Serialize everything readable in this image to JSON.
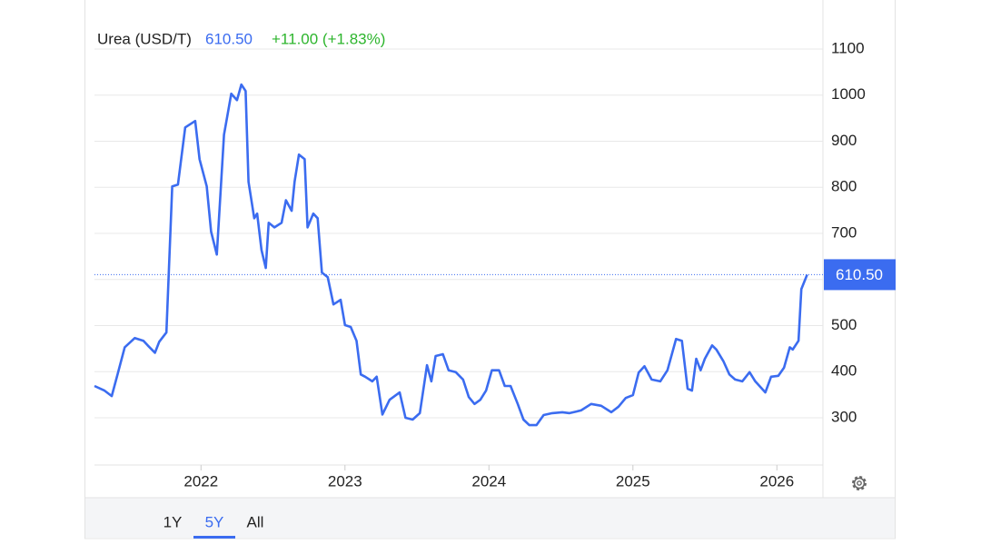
{
  "chart_data": {
    "type": "line",
    "title": "Urea (USD/T)",
    "last_price": "610.50",
    "change": "+11.00 (+1.83%)",
    "x": [
      2021.26,
      2021.33,
      2021.38,
      2021.42,
      2021.47,
      2021.54,
      2021.6,
      2021.63,
      2021.68,
      2021.71,
      2021.76,
      2021.8,
      2021.84,
      2021.89,
      2021.96,
      2021.99,
      2022.04,
      2022.07,
      2022.11,
      2022.16,
      2022.21,
      2022.25,
      2022.28,
      2022.31,
      2022.33,
      2022.37,
      2022.39,
      2022.42,
      2022.45,
      2022.47,
      2022.51,
      2022.56,
      2022.59,
      2022.63,
      2022.65,
      2022.68,
      2022.72,
      2022.74,
      2022.78,
      2022.81,
      2022.84,
      2022.88,
      2022.92,
      2022.97,
      2023.0,
      2023.04,
      2023.08,
      2023.11,
      2023.14,
      2023.19,
      2023.22,
      2023.26,
      2023.31,
      2023.38,
      2023.42,
      2023.47,
      2023.52,
      2023.57,
      2023.6,
      2023.63,
      2023.68,
      2023.72,
      2023.77,
      2023.82,
      2023.86,
      2023.9,
      2023.94,
      2023.98,
      2024.02,
      2024.07,
      2024.11,
      2024.15,
      2024.2,
      2024.24,
      2024.28,
      2024.33,
      2024.38,
      2024.44,
      2024.51,
      2024.56,
      2024.64,
      2024.71,
      2024.78,
      2024.85,
      2024.9,
      2024.95,
      2025.0,
      2025.04,
      2025.08,
      2025.13,
      2025.19,
      2025.24,
      2025.3,
      2025.34,
      2025.38,
      2025.41,
      2025.44,
      2025.47,
      2025.5,
      2025.55,
      2025.58,
      2025.63,
      2025.67,
      2025.71,
      2025.76,
      2025.81,
      2025.85,
      2025.92,
      2025.96,
      2026.01,
      2026.05,
      2026.09,
      2026.11,
      2026.15,
      2026.17,
      2026.21
    ],
    "series": [
      {
        "name": "Urea (USD/T)",
        "color": "#3b6cf0",
        "values": [
          369,
          359,
          347,
          394,
          453,
          473,
          467,
          457,
          441,
          465,
          485,
          802,
          806,
          930,
          944,
          861,
          802,
          704,
          654,
          914,
          1003,
          989,
          1023,
          1009,
          812,
          733,
          743,
          664,
          625,
          723,
          713,
          723,
          772,
          749,
          812,
          871,
          861,
          713,
          743,
          733,
          615,
          605,
          546,
          556,
          501,
          497,
          467,
          394,
          389,
          379,
          389,
          307,
          339,
          355,
          300,
          296,
          310,
          414,
          379,
          434,
          438,
          403,
          399,
          383,
          345,
          330,
          339,
          359,
          403,
          403,
          369,
          369,
          330,
          296,
          284,
          284,
          306,
          310,
          312,
          310,
          316,
          330,
          326,
          312,
          324,
          343,
          349,
          398,
          412,
          383,
          379,
          403,
          471,
          467,
          363,
          359,
          428,
          403,
          428,
          457,
          448,
          422,
          394,
          383,
          379,
          399,
          379,
          355,
          389,
          391,
          409,
          453,
          448,
          467,
          579,
          610.5
        ]
      }
    ],
    "xlim": [
      2021.26,
      2026.32
    ],
    "xticks": [
      2022,
      2023,
      2024,
      2025,
      2026
    ],
    "ylim": [
      200,
      1200
    ],
    "yticks": [
      300,
      400,
      500,
      600,
      700,
      800,
      900,
      1000,
      1100
    ],
    "grid": true,
    "ranges": [
      "1Y",
      "5Y",
      "All"
    ],
    "selected_range": 1
  }
}
